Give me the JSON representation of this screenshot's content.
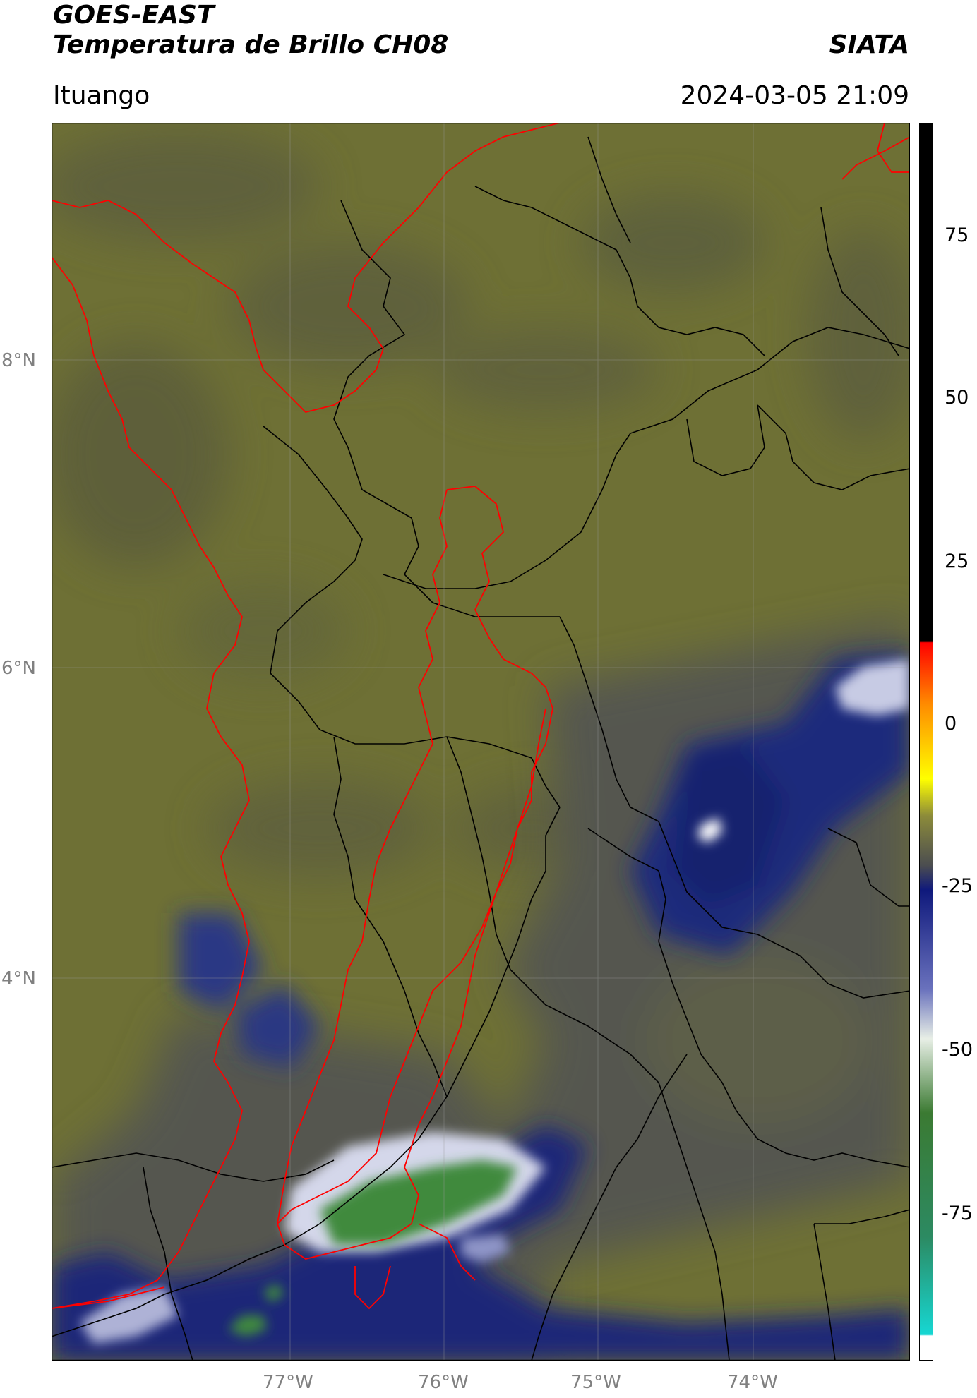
{
  "header": {
    "satellite": "GOES-EAST",
    "product": "Temperatura de Brillo CH08",
    "agency": "SIATA",
    "region": "Ituango",
    "timestamp": "2024-03-05 21:09"
  },
  "map": {
    "lat_ticks": [
      "8°N",
      "6°N",
      "4°N"
    ],
    "lon_ticks": [
      "77°W",
      "76°W",
      "75°W",
      "74°W"
    ],
    "colors": {
      "background_olive": "#6e7035",
      "dark_olive": "#5b5d3a",
      "gray_band": "#54554f",
      "deep_blue": "#13206e",
      "light_cloud": "#c7cbe4",
      "white_core": "#ffffff",
      "green_core": "#3f8a3c",
      "country_border": "#ff0000",
      "department_border": "#000000"
    }
  },
  "colorbar": {
    "tick_labels": [
      "75",
      "50",
      "25",
      "0",
      "-25",
      "-50",
      "-75"
    ],
    "colors": [
      "#ffffff",
      "#16d7d3",
      "#2c8a62",
      "#3b7a32",
      "#e8efe6",
      "#6a72bd",
      "#0f197c",
      "#4b4d50",
      "#8c8b3a",
      "#ffff00",
      "#ff8c00",
      "#ff0000",
      "#000000"
    ]
  }
}
